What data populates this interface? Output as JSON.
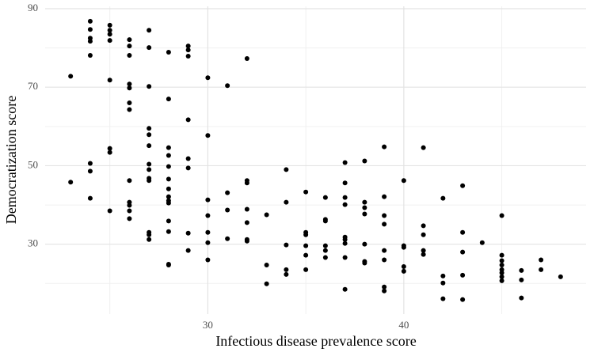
{
  "chart_data": {
    "type": "scatter",
    "x_label": "Infectious disease prevalence score",
    "y_label": "Democratization score",
    "color": "#000000",
    "grid": true,
    "xlim": [
      21.7,
      49.3
    ],
    "ylim": [
      12.2,
      90.6
    ],
    "xticks": [
      30,
      40
    ],
    "yticks": [
      30,
      50,
      70,
      90
    ],
    "x": [
      23,
      23,
      24,
      24,
      24,
      24,
      24,
      24,
      24,
      24,
      25,
      25,
      25,
      25,
      25,
      25,
      25,
      25,
      26,
      26,
      26,
      26,
      26,
      26,
      26,
      26,
      26,
      26,
      26,
      26,
      27,
      27,
      27,
      27,
      27,
      27,
      27,
      27,
      27,
      27,
      27,
      27,
      27,
      28,
      28,
      28,
      28,
      28,
      28,
      28,
      28,
      28,
      28,
      28,
      28,
      28,
      28,
      29,
      29,
      29,
      29,
      29,
      29,
      29,
      29,
      30,
      30,
      30,
      30,
      30,
      30,
      30,
      31,
      31,
      31,
      31,
      32,
      32,
      32,
      32,
      32,
      32,
      32,
      33,
      33,
      33,
      34,
      34,
      34,
      34,
      34,
      35,
      35,
      35,
      35,
      35,
      35,
      36,
      36,
      36,
      36,
      36,
      36,
      37,
      37,
      37,
      37,
      37,
      37,
      37,
      37,
      37,
      38,
      38,
      38,
      38,
      38,
      38,
      38,
      39,
      39,
      39,
      39,
      39,
      39,
      39,
      39,
      40,
      40,
      40,
      40,
      40,
      41,
      41,
      41,
      41,
      41,
      42,
      42,
      42,
      42,
      43,
      43,
      43,
      43,
      43,
      44,
      45,
      45,
      45,
      45,
      45,
      45,
      45,
      45,
      46,
      46,
      46,
      47,
      47,
      48
    ],
    "y": [
      72.8,
      45.8,
      86.8,
      84.7,
      82.5,
      81.7,
      78.1,
      50.6,
      48.6,
      41.7,
      85.8,
      84.5,
      83.5,
      81.9,
      71.8,
      54.4,
      53.4,
      38.5,
      82.1,
      80.5,
      78.1,
      70.8,
      69.8,
      66.0,
      64.3,
      46.2,
      40.7,
      39.9,
      38.5,
      36.5,
      84.5,
      80.1,
      70.2,
      59.5,
      57.9,
      55.1,
      50.4,
      49.0,
      46.8,
      46.2,
      33.0,
      32.4,
      31.2,
      78.9,
      67.0,
      54.6,
      52.6,
      49.8,
      46.6,
      44.1,
      42.1,
      41.1,
      40.5,
      35.9,
      33.2,
      24.9,
      24.7,
      80.5,
      79.5,
      77.9,
      61.7,
      51.8,
      49.4,
      32.8,
      28.4,
      72.4,
      57.7,
      41.3,
      37.3,
      33.0,
      30.4,
      26.0,
      70.4,
      43.1,
      38.7,
      31.4,
      77.3,
      46.2,
      45.6,
      38.9,
      35.5,
      31.2,
      30.8,
      37.5,
      24.7,
      19.9,
      49.0,
      40.7,
      29.8,
      23.5,
      22.3,
      43.3,
      33.0,
      32.4,
      29.6,
      27.2,
      23.5,
      41.9,
      36.3,
      35.9,
      29.6,
      28.4,
      26.6,
      50.8,
      45.6,
      41.9,
      40.1,
      31.8,
      31.2,
      30.2,
      26.6,
      18.5,
      51.2,
      40.7,
      39.3,
      37.7,
      30.0,
      25.6,
      25.2,
      54.8,
      42.1,
      37.3,
      35.1,
      28.4,
      26.0,
      19.1,
      18.1,
      46.2,
      29.6,
      29.2,
      24.3,
      23.1,
      54.6,
      34.7,
      32.4,
      28.4,
      27.4,
      41.7,
      21.9,
      20.1,
      16.1,
      44.9,
      33.0,
      28.0,
      22.1,
      15.9,
      30.4,
      37.3,
      27.2,
      25.8,
      24.7,
      23.5,
      22.7,
      21.7,
      20.7,
      23.3,
      20.9,
      16.3,
      26.0,
      23.5,
      21.7
    ]
  }
}
